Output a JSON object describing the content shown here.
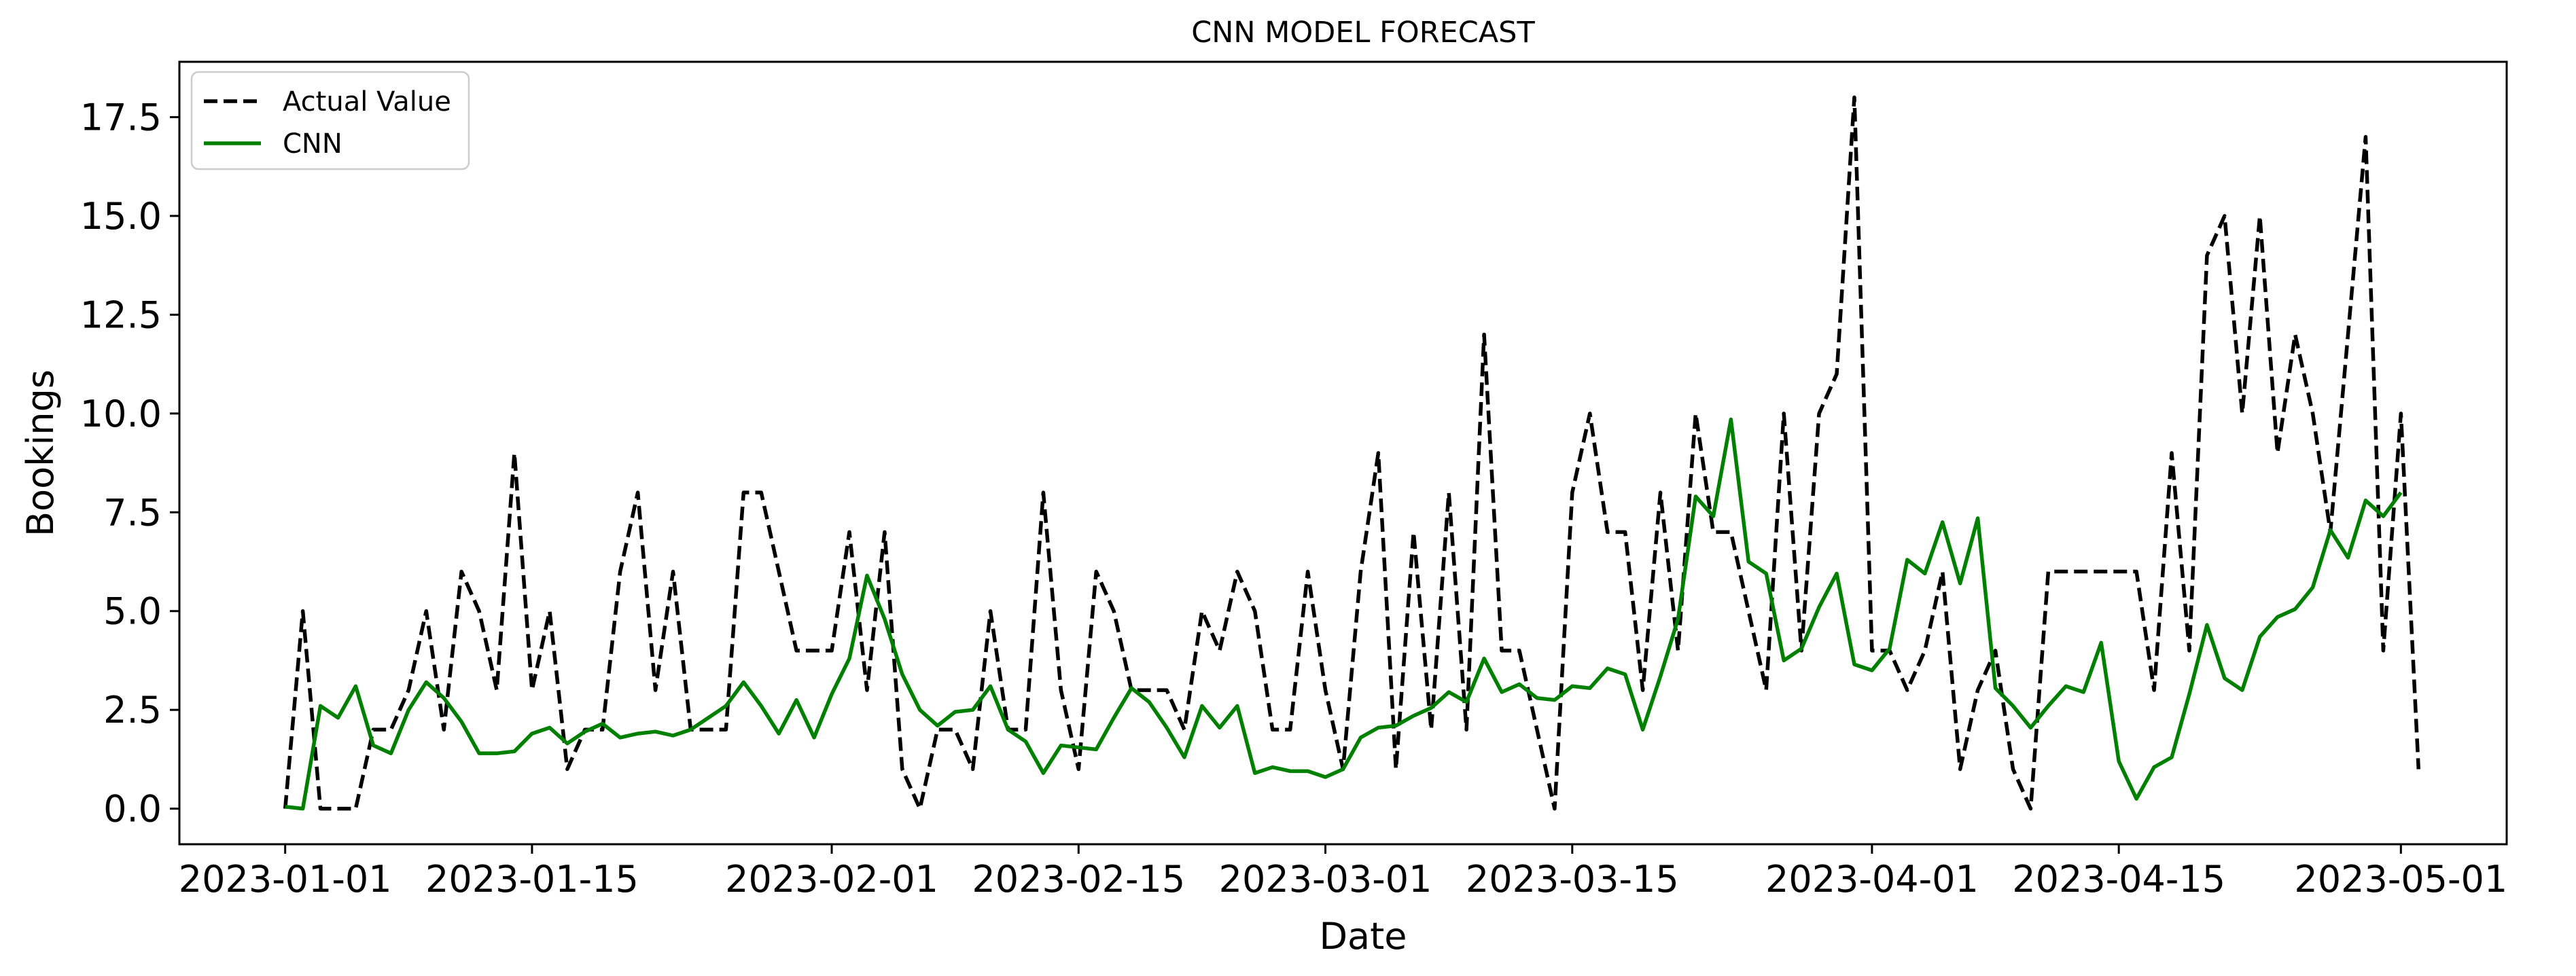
{
  "chart_data": {
    "type": "line",
    "title": "CNN MODEL FORECAST",
    "xlabel": "Date",
    "ylabel": "Bookings",
    "xlim": [
      "2022-12-26",
      "2023-05-07"
    ],
    "ylim": [
      -0.9,
      18.9
    ],
    "x_ticks": [
      "2023-01-01",
      "2023-01-15",
      "2023-02-01",
      "2023-02-15",
      "2023-03-01",
      "2023-03-15",
      "2023-04-01",
      "2023-04-15",
      "2023-05-01"
    ],
    "y_ticks": [
      0.0,
      2.5,
      5.0,
      7.5,
      10.0,
      12.5,
      15.0,
      17.5
    ],
    "y_tick_labels": [
      "0.0",
      "2.5",
      "5.0",
      "7.5",
      "10.0",
      "12.5",
      "15.0",
      "17.5"
    ],
    "grid": false,
    "legend_position": "top-left",
    "x_start": "2023-01-01",
    "series": [
      {
        "name": "Actual Value",
        "color": "#000000",
        "style": "dashed",
        "values": [
          0,
          5,
          0,
          0,
          0,
          2,
          2,
          3,
          5,
          2,
          6,
          5,
          3,
          9,
          3,
          5,
          1,
          2,
          2,
          6,
          8,
          3,
          6,
          2,
          2,
          2,
          8,
          8,
          6,
          4,
          4,
          4,
          7,
          3,
          7,
          1,
          0,
          2,
          2,
          1,
          5,
          2,
          2,
          8,
          3,
          1,
          6,
          5,
          3,
          3,
          3,
          2,
          5,
          4,
          6,
          5,
          2,
          2,
          6,
          3,
          1,
          6,
          9,
          1,
          7,
          2,
          8,
          2,
          12,
          4,
          4,
          2,
          0,
          8,
          10,
          7,
          7,
          3,
          8,
          4,
          10,
          7,
          7,
          5,
          3,
          10,
          4,
          10,
          11,
          18,
          4,
          4,
          3,
          4,
          6,
          1,
          3,
          4,
          1,
          0,
          6,
          6,
          6,
          6,
          6,
          6,
          3,
          9,
          4,
          14,
          15,
          10,
          15,
          9,
          12,
          10,
          7,
          12,
          17,
          4,
          10,
          1
        ]
      },
      {
        "name": "CNN",
        "color": "#008000",
        "style": "solid",
        "values": [
          0.05,
          0.0,
          2.6,
          2.3,
          3.1,
          1.6,
          1.4,
          2.5,
          3.2,
          2.8,
          2.2,
          1.4,
          1.4,
          1.45,
          1.9,
          2.05,
          1.65,
          1.95,
          2.15,
          1.8,
          1.9,
          1.95,
          1.85,
          2.0,
          2.3,
          2.6,
          3.2,
          2.6,
          1.9,
          2.75,
          1.8,
          2.9,
          3.8,
          5.9,
          4.8,
          3.4,
          2.5,
          2.1,
          2.45,
          2.5,
          3.1,
          2.0,
          1.7,
          0.9,
          1.6,
          1.55,
          1.5,
          2.3,
          3.05,
          2.7,
          2.05,
          1.3,
          2.6,
          2.05,
          2.6,
          0.9,
          1.05,
          0.95,
          0.95,
          0.8,
          1.0,
          1.8,
          2.05,
          2.1,
          2.35,
          2.55,
          2.95,
          2.7,
          3.8,
          2.95,
          3.15,
          2.8,
          2.75,
          3.1,
          3.05,
          3.55,
          3.4,
          2.0,
          3.35,
          4.8,
          7.9,
          7.4,
          9.85,
          6.25,
          5.95,
          3.75,
          4.05,
          5.1,
          5.95,
          3.65,
          3.5,
          4.05,
          6.3,
          5.95,
          7.25,
          5.7,
          7.35,
          3.05,
          2.6,
          2.05,
          2.6,
          3.1,
          2.95,
          4.2,
          1.2,
          0.25,
          1.05,
          1.3,
          2.9,
          4.65,
          3.3,
          3.0,
          4.35,
          4.85,
          5.05,
          5.6,
          7.05,
          6.35,
          7.8,
          7.4,
          8.0
        ]
      }
    ]
  }
}
